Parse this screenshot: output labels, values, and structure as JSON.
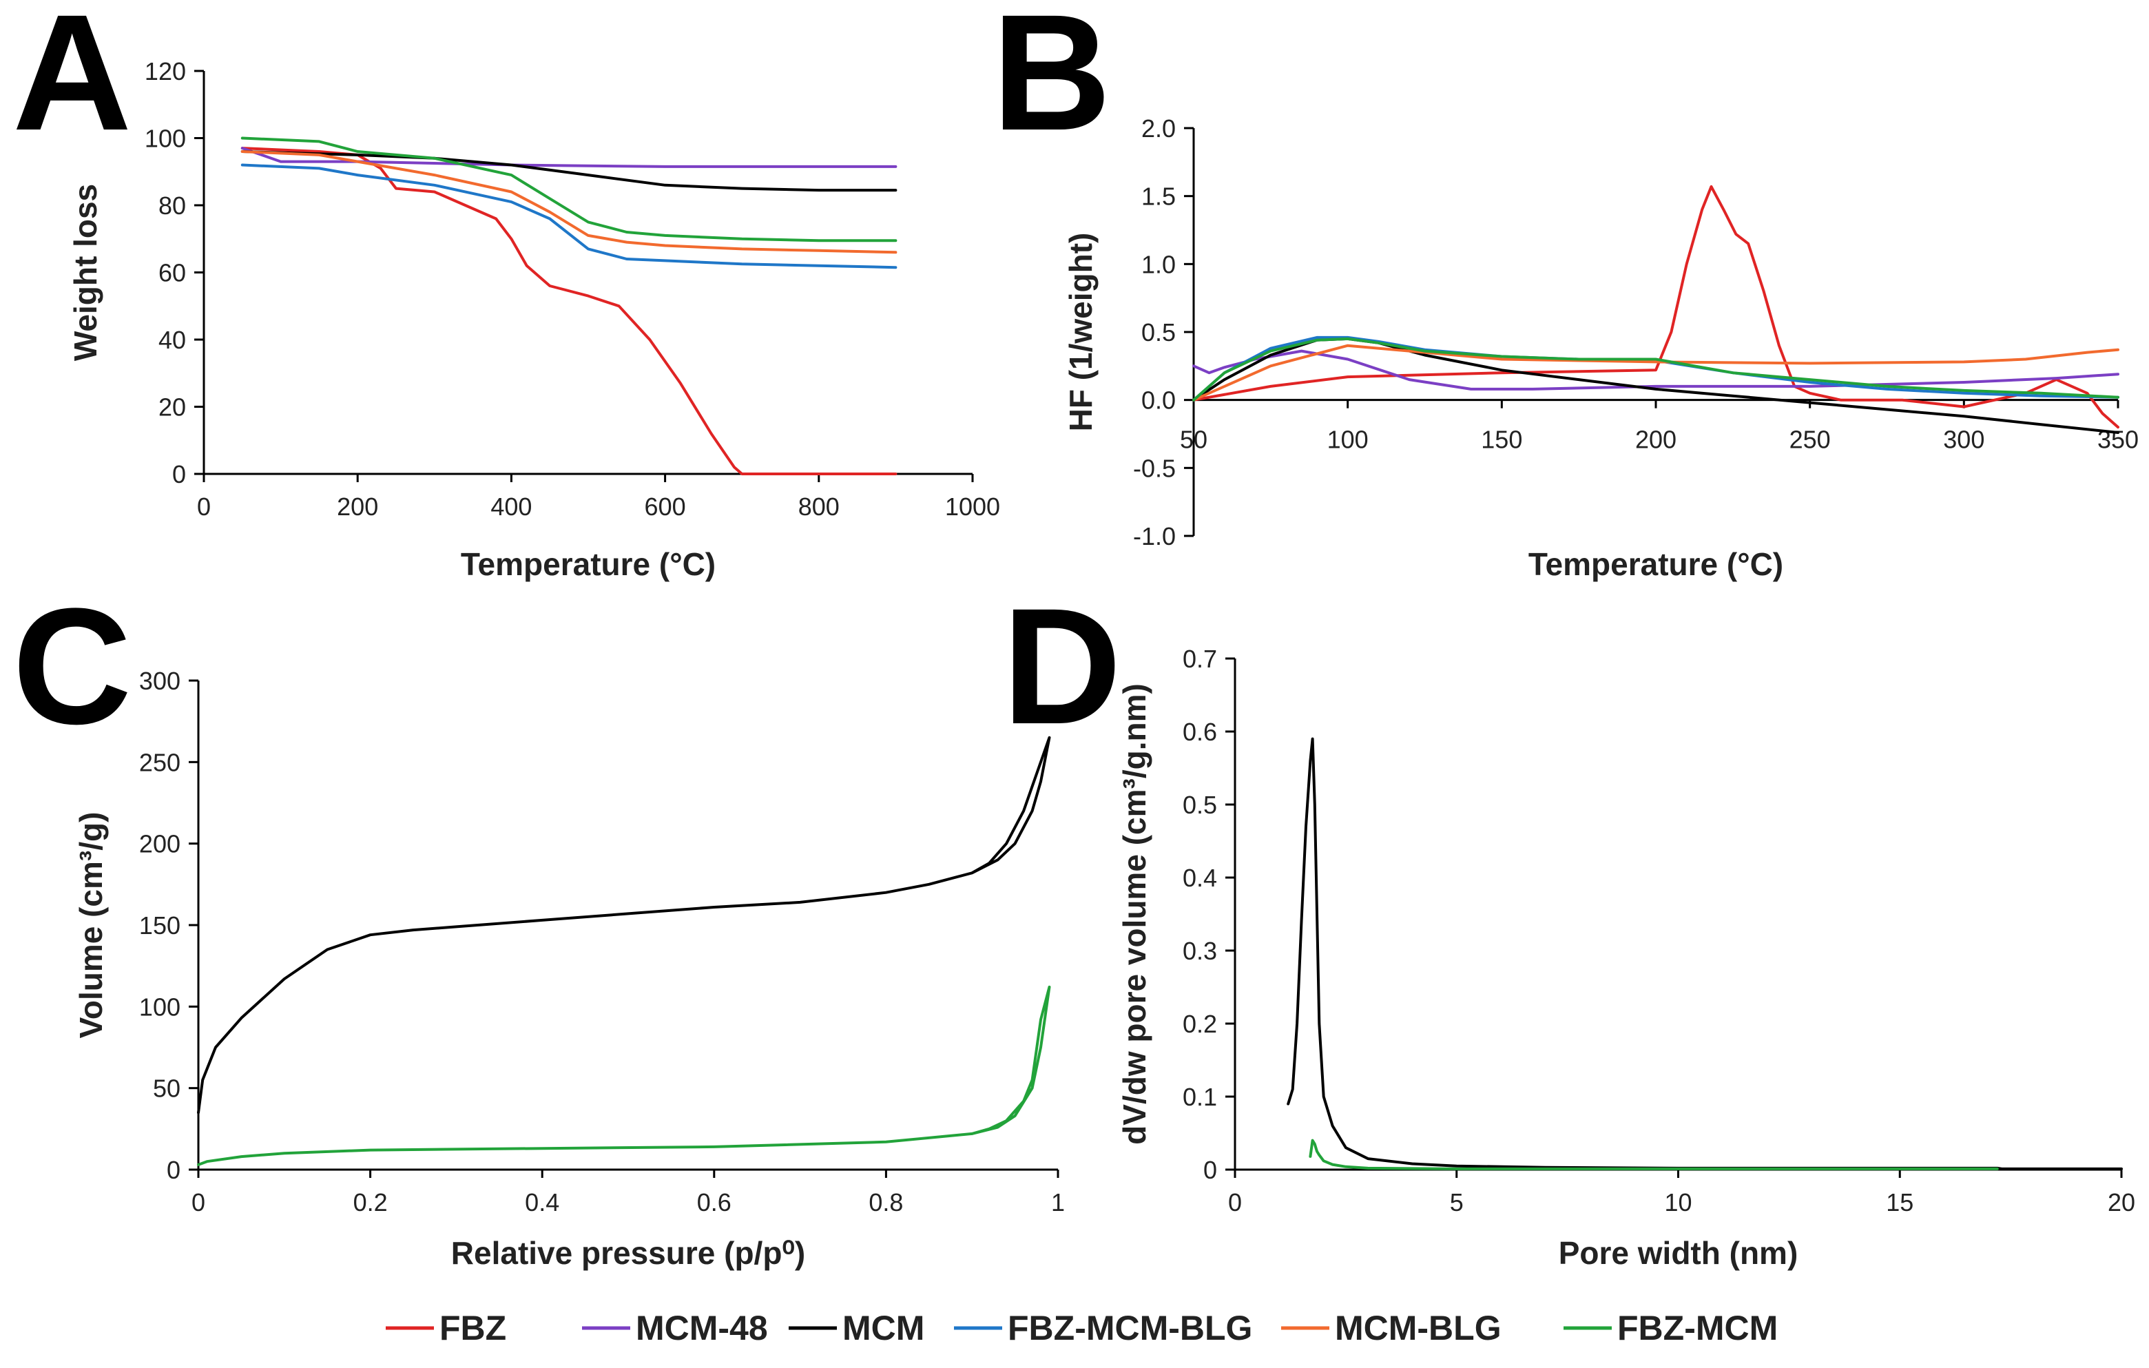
{
  "series_meta": [
    {
      "name": "FBZ",
      "color": "#e02424"
    },
    {
      "name": "MCM-48",
      "color": "#7b3fc4"
    },
    {
      "name": "MCM",
      "color": "#000000"
    },
    {
      "name": "FBZ-MCM-BLG",
      "color": "#1f77c8"
    },
    {
      "name": "MCM-BLG",
      "color": "#f26a2e"
    },
    {
      "name": "FBZ-MCM",
      "color": "#22a33a"
    }
  ],
  "chart_data": [
    {
      "panel": "A",
      "type": "line",
      "xlabel": "Temperature (°C)",
      "ylabel": "Weight loss",
      "xlim": [
        0,
        1000
      ],
      "ylim": [
        0,
        120
      ],
      "xticks": [
        0,
        200,
        400,
        600,
        800,
        1000
      ],
      "yticks": [
        0,
        20,
        40,
        60,
        80,
        100,
        120
      ],
      "series": [
        {
          "name": "FBZ",
          "x": [
            50,
            150,
            200,
            230,
            250,
            300,
            340,
            380,
            400,
            420,
            450,
            500,
            540,
            580,
            620,
            660,
            690,
            700,
            720,
            800,
            900
          ],
          "y": [
            97,
            96,
            95,
            91,
            85,
            84,
            80,
            76,
            70,
            62,
            56,
            53,
            50,
            40,
            27,
            12,
            2,
            0,
            0,
            0,
            0
          ]
        },
        {
          "name": "MCM-48",
          "x": [
            50,
            100,
            200,
            400,
            600,
            800,
            900
          ],
          "y": [
            97,
            93,
            93,
            92,
            91.5,
            91.5,
            91.5
          ]
        },
        {
          "name": "MCM",
          "x": [
            50,
            200,
            300,
            400,
            500,
            600,
            700,
            800,
            900
          ],
          "y": [
            96,
            95,
            94,
            92,
            89,
            86,
            85,
            84.5,
            84.5
          ]
        },
        {
          "name": "FBZ-MCM-BLG",
          "x": [
            50,
            150,
            200,
            300,
            400,
            450,
            500,
            550,
            600,
            700,
            800,
            900
          ],
          "y": [
            92,
            91,
            89,
            86,
            81,
            76,
            67,
            64,
            63.5,
            62.5,
            62,
            61.5
          ]
        },
        {
          "name": "MCM-BLG",
          "x": [
            50,
            150,
            200,
            300,
            400,
            450,
            500,
            550,
            600,
            700,
            800,
            900
          ],
          "y": [
            96,
            95,
            93,
            89,
            84,
            78,
            71,
            69,
            68,
            67,
            66.5,
            66
          ]
        },
        {
          "name": "FBZ-MCM",
          "x": [
            50,
            150,
            200,
            300,
            400,
            450,
            500,
            550,
            600,
            700,
            800,
            900
          ],
          "y": [
            100,
            99,
            96,
            94,
            89,
            82,
            75,
            72,
            71,
            70,
            69.5,
            69.5
          ]
        }
      ]
    },
    {
      "panel": "B",
      "type": "line",
      "xlabel": "Temperature (°C)",
      "ylabel": "HF (1/weight)",
      "xlim": [
        50,
        350
      ],
      "ylim": [
        -1.0,
        2.0
      ],
      "xticks": [
        50,
        100,
        150,
        200,
        250,
        300,
        350
      ],
      "yticks": [
        -1.0,
        -0.5,
        0.0,
        0.5,
        1.0,
        1.5,
        2.0
      ],
      "series": [
        {
          "name": "FBZ",
          "x": [
            50,
            75,
            100,
            150,
            200,
            205,
            210,
            215,
            218,
            222,
            226,
            230,
            235,
            240,
            245,
            250,
            260,
            280,
            300,
            320,
            330,
            340,
            345,
            350
          ],
          "y": [
            0.0,
            0.1,
            0.17,
            0.2,
            0.22,
            0.5,
            1.0,
            1.4,
            1.57,
            1.4,
            1.22,
            1.15,
            0.8,
            0.4,
            0.1,
            0.05,
            0.0,
            0.0,
            -0.05,
            0.05,
            0.15,
            0.05,
            -0.1,
            -0.2
          ]
        },
        {
          "name": "MCM-48",
          "x": [
            50,
            55,
            60,
            70,
            85,
            100,
            120,
            140,
            160,
            200,
            250,
            300,
            330,
            350
          ],
          "y": [
            0.25,
            0.2,
            0.24,
            0.3,
            0.36,
            0.3,
            0.15,
            0.08,
            0.08,
            0.1,
            0.1,
            0.13,
            0.16,
            0.19
          ]
        },
        {
          "name": "MCM",
          "x": [
            50,
            60,
            75,
            90,
            100,
            110,
            125,
            150,
            175,
            200,
            225,
            250,
            275,
            300,
            325,
            350
          ],
          "y": [
            0.0,
            0.15,
            0.33,
            0.44,
            0.45,
            0.42,
            0.33,
            0.22,
            0.15,
            0.08,
            0.03,
            -0.02,
            -0.07,
            -0.12,
            -0.18,
            -0.24
          ]
        },
        {
          "name": "FBZ-MCM-BLG",
          "x": [
            50,
            60,
            75,
            90,
            100,
            110,
            125,
            150,
            175,
            200,
            225,
            250,
            275,
            300,
            325,
            350
          ],
          "y": [
            0.0,
            0.2,
            0.38,
            0.46,
            0.46,
            0.43,
            0.37,
            0.32,
            0.3,
            0.29,
            0.2,
            0.13,
            0.08,
            0.05,
            0.03,
            0.02
          ]
        },
        {
          "name": "MCM-BLG",
          "x": [
            50,
            75,
            100,
            150,
            200,
            250,
            300,
            320,
            340,
            350
          ],
          "y": [
            0.0,
            0.25,
            0.4,
            0.3,
            0.28,
            0.27,
            0.28,
            0.3,
            0.35,
            0.37
          ]
        },
        {
          "name": "FBZ-MCM",
          "x": [
            50,
            60,
            75,
            90,
            100,
            110,
            125,
            150,
            175,
            200,
            210,
            225,
            250,
            275,
            300,
            325,
            350
          ],
          "y": [
            0.0,
            0.2,
            0.36,
            0.44,
            0.45,
            0.42,
            0.36,
            0.32,
            0.3,
            0.3,
            0.26,
            0.2,
            0.15,
            0.1,
            0.07,
            0.05,
            0.02
          ]
        }
      ]
    },
    {
      "panel": "C",
      "type": "line",
      "xlabel": "Relative pressure (p/p⁰)",
      "ylabel": "Volume (cm³/g)",
      "xlim": [
        0,
        1
      ],
      "ylim": [
        0,
        300
      ],
      "xticks": [
        0,
        0.2,
        0.4,
        0.6,
        0.8,
        1
      ],
      "yticks": [
        0,
        50,
        100,
        150,
        200,
        250,
        300
      ],
      "series": [
        {
          "name": "MCM",
          "x": [
            0.0,
            0.005,
            0.02,
            0.05,
            0.1,
            0.15,
            0.2,
            0.25,
            0.3,
            0.4,
            0.5,
            0.6,
            0.7,
            0.8,
            0.85,
            0.9,
            0.93,
            0.95,
            0.97,
            0.98,
            0.99,
            0.98,
            0.96,
            0.94,
            0.92,
            0.9,
            0.85,
            0.8
          ],
          "y": [
            35,
            55,
            75,
            93,
            117,
            135,
            144,
            147,
            149,
            153,
            157,
            161,
            164,
            170,
            175,
            182,
            190,
            200,
            220,
            238,
            265,
            250,
            220,
            200,
            188,
            182,
            175,
            170
          ]
        },
        {
          "name": "FBZ-MCM",
          "x": [
            0.0,
            0.01,
            0.05,
            0.1,
            0.2,
            0.4,
            0.6,
            0.8,
            0.9,
            0.93,
            0.95,
            0.97,
            0.98,
            0.99,
            0.98,
            0.97,
            0.96,
            0.94,
            0.92,
            0.9
          ],
          "y": [
            3,
            5,
            8,
            10,
            12,
            13,
            14,
            17,
            22,
            26,
            33,
            50,
            75,
            112,
            92,
            55,
            42,
            30,
            25,
            22
          ]
        }
      ]
    },
    {
      "panel": "D",
      "type": "line",
      "xlabel": "Pore width (nm)",
      "ylabel": "dV/dw pore volume (cm³/g.nm)",
      "xlim": [
        0,
        20
      ],
      "ylim": [
        0,
        0.7
      ],
      "xticks": [
        0,
        5,
        10,
        15,
        20
      ],
      "yticks": [
        0,
        0.1,
        0.2,
        0.3,
        0.4,
        0.5,
        0.6,
        0.7
      ],
      "series": [
        {
          "name": "MCM",
          "x": [
            1.2,
            1.3,
            1.4,
            1.5,
            1.6,
            1.7,
            1.75,
            1.8,
            1.9,
            2.0,
            2.2,
            2.5,
            3.0,
            4.0,
            5.0,
            7.0,
            10.0,
            15.0,
            17.2,
            17.3,
            20.0
          ],
          "y": [
            0.09,
            0.11,
            0.2,
            0.34,
            0.47,
            0.56,
            0.59,
            0.5,
            0.2,
            0.1,
            0.06,
            0.03,
            0.015,
            0.008,
            0.005,
            0.003,
            0.002,
            0.002,
            0.002,
            0.001,
            0.001
          ]
        },
        {
          "name": "FBZ-MCM",
          "x": [
            1.7,
            1.75,
            1.8,
            1.85,
            1.9,
            2.0,
            2.2,
            2.5,
            3.0,
            5.0,
            10.0,
            17.2
          ],
          "y": [
            0.018,
            0.04,
            0.035,
            0.025,
            0.02,
            0.012,
            0.007,
            0.004,
            0.002,
            0.001,
            0.001,
            0.001
          ]
        }
      ]
    }
  ]
}
